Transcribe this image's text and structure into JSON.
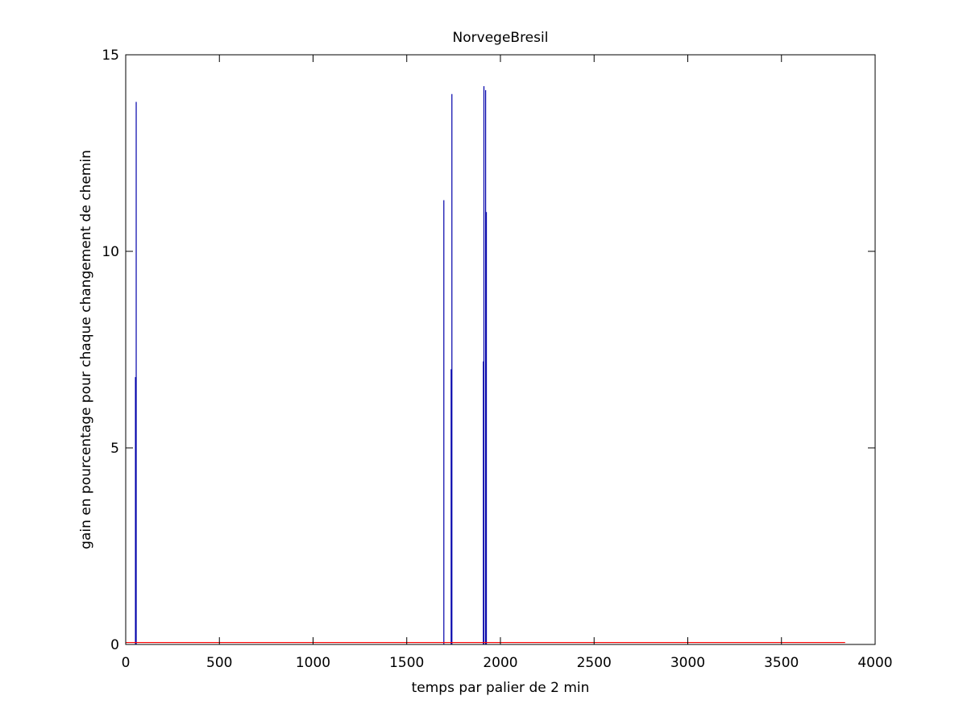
{
  "chart_data": {
    "type": "line",
    "title": "NorvegeBresil",
    "xlabel": "temps par palier de 2 min",
    "ylabel": "gain en pourcentage pour chaque changement de chemin",
    "xlim": [
      0,
      4000
    ],
    "ylim": [
      0,
      15
    ],
    "xticks": [
      0,
      500,
      1000,
      1500,
      2000,
      2500,
      3000,
      3500,
      4000
    ],
    "yticks": [
      0,
      5,
      10,
      15
    ],
    "grid": false,
    "legend": "none",
    "series": [
      {
        "color": "#0000aa",
        "style": "spikes",
        "points": [
          {
            "x": 52,
            "y": 6.8
          },
          {
            "x": 56,
            "y": 13.8
          },
          {
            "x": 1698,
            "y": 11.3
          },
          {
            "x": 1737,
            "y": 7.0
          },
          {
            "x": 1741,
            "y": 14.0
          },
          {
            "x": 1909,
            "y": 7.2
          },
          {
            "x": 1912,
            "y": 14.2
          },
          {
            "x": 1921,
            "y": 14.1
          },
          {
            "x": 1925,
            "y": 11.0
          }
        ]
      },
      {
        "color": "#ff0000",
        "style": "line",
        "x": [
          0,
          3840
        ],
        "y": [
          0.05,
          0.05
        ]
      }
    ]
  }
}
